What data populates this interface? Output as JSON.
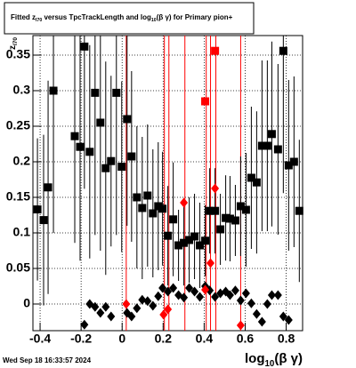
{
  "chart_data": {
    "type": "scatter",
    "title": [
      "Fitted z",
      "I70",
      " versus TpcTrackLength and log",
      "10",
      "(β γ) for Primary pion+"
    ],
    "x_label": [
      "log",
      "10",
      "(β γ)"
    ],
    "y_label": [
      "z",
      "I70"
    ],
    "date": "Wed Sep 18 16:33:57 2024",
    "xlim": [
      -0.435,
      0.88
    ],
    "ylim": [
      -0.0375,
      0.3775
    ],
    "xticks": [
      -0.4,
      -0.2,
      0,
      0.2,
      0.4,
      0.6,
      0.8
    ],
    "yticks": [
      0,
      0.05,
      0.1,
      0.15,
      0.2,
      0.25,
      0.3,
      0.35
    ],
    "grid": true,
    "series": [
      {
        "marker": "square",
        "color": "#000000",
        "x": [
          -0.413,
          -0.383,
          -0.361,
          -0.335,
          -0.231,
          -0.205,
          -0.184,
          -0.158,
          -0.132,
          -0.106,
          -0.08,
          -0.054,
          -0.028,
          -0.002,
          0.024,
          0.046,
          0.072,
          0.098,
          0.124,
          0.15,
          0.176,
          0.197,
          0.223,
          0.249,
          0.275,
          0.301,
          0.327,
          0.353,
          0.379,
          0.405,
          0.427,
          0.453,
          0.479,
          0.505,
          0.526,
          0.552,
          0.578,
          0.604,
          0.63,
          0.656,
          0.682,
          0.708,
          0.73,
          0.76,
          0.786,
          0.812,
          0.838,
          0.864
        ],
        "values": [
          0.133,
          0.118,
          0.164,
          0.3,
          0.236,
          0.221,
          0.362,
          0.214,
          0.297,
          0.255,
          0.191,
          0.201,
          0.297,
          0.193,
          0.26,
          0.2075,
          0.15,
          0.135,
          0.1525,
          0.1275,
          0.1375,
          0.134,
          0.096,
          0.119,
          0.0825,
          0.086,
          0.09,
          0.095,
          0.0825,
          0.089,
          0.131,
          0.131,
          0.105,
          0.121,
          0.12,
          0.1175,
          0.1375,
          0.1325,
          0.1775,
          0.171,
          0.2225,
          0.2225,
          0.239,
          0.2175,
          0.356,
          0.195,
          0.2,
          0.131
        ],
        "errors": [
          0.1,
          0.12,
          0.15,
          0.2,
          0.15,
          0.16,
          0.2,
          0.15,
          0.2,
          0.18,
          0.15,
          0.12,
          0.2,
          0.12,
          0.15,
          0.12,
          0.1,
          0.1,
          0.1,
          0.09,
          0.09,
          0.08,
          0.07,
          0.08,
          0.05,
          0.06,
          0.06,
          0.06,
          0.06,
          0.05,
          0.06,
          0.06,
          0.05,
          0.06,
          0.06,
          0.05,
          0.07,
          0.08,
          0.1,
          0.1,
          0.12,
          0.12,
          0.13,
          0.12,
          0.2,
          0.12,
          0.12,
          0.1
        ]
      },
      {
        "marker": "diamond",
        "color": "#000000",
        "x": [
          -0.184,
          -0.158,
          -0.132,
          -0.106,
          -0.08,
          -0.054,
          0.024,
          0.046,
          0.072,
          0.098,
          0.124,
          0.15,
          0.176,
          0.197,
          0.223,
          0.249,
          0.275,
          0.301,
          0.327,
          0.353,
          0.379,
          0.405,
          0.427,
          0.453,
          0.479,
          0.505,
          0.526,
          0.552,
          0.578,
          0.604,
          0.63,
          0.656,
          0.682,
          0.708,
          0.73,
          0.76,
          0.786,
          0.812
        ],
        "values": [
          -0.029,
          0,
          -0.004,
          -0.0125,
          -0.004,
          -0.0175,
          -0.0125,
          -0.0175,
          -0.006,
          0.006,
          0.004,
          -0.0025,
          0.011,
          0.0225,
          0.0175,
          0.0225,
          0.0125,
          0.009,
          0.0225,
          0.0175,
          0.01,
          0.025,
          0.019,
          0.01,
          0.015,
          0.0175,
          0.0125,
          0.019,
          0.005,
          0.015,
          0.001,
          -0.014,
          -0.025,
          0,
          0.0125,
          0.0125,
          -0.0175,
          -0.0225
        ]
      },
      {
        "marker": "diamond",
        "color": "#ff0000",
        "x": [
          0.02,
          0.202,
          0.223,
          0.301,
          0.405,
          0.431,
          0.453,
          0.578
        ],
        "values": [
          0,
          -0.015,
          -0.0075,
          0.1425,
          0.02,
          0.0575,
          0.1625,
          -0.03
        ]
      },
      {
        "marker": "square",
        "color": "#ff0000",
        "x": [
          0.405,
          0.453
        ],
        "values": [
          0.285,
          0.356
        ]
      }
    ],
    "vlines": {
      "color": "#ff0000",
      "x": [
        0.02,
        0.206,
        0.228,
        0.306,
        0.41,
        0.431,
        0.457,
        0.578
      ]
    }
  }
}
